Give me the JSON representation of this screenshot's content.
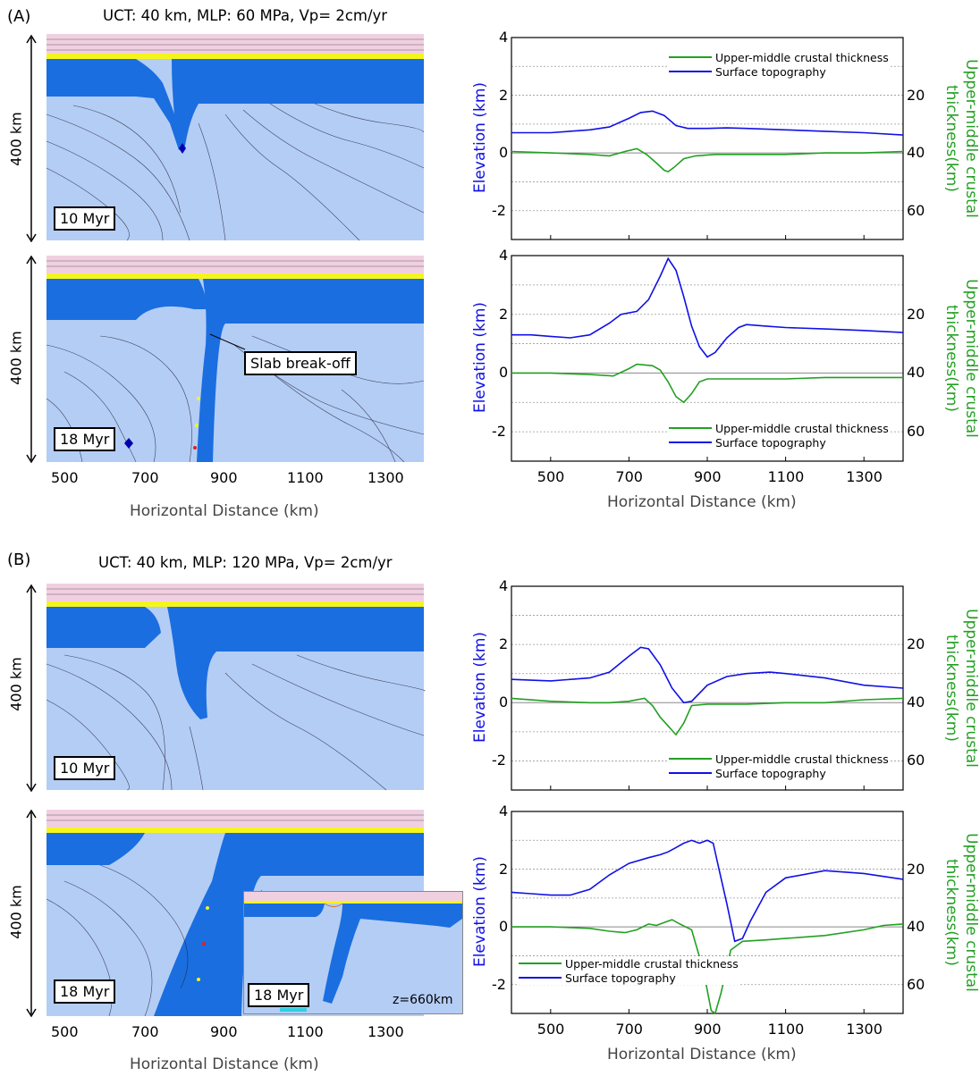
{
  "panels": {
    "A": {
      "label": "(A)",
      "params": "UCT: 40 km, MLP: 60 MPa, Vp= 2cm/yr",
      "depth_label": "400 km",
      "snapshots": [
        {
          "time": "10 Myr"
        },
        {
          "time": "18 Myr",
          "annotation": "Slab break-off"
        }
      ]
    },
    "B": {
      "label": "(B)",
      "params": "UCT: 40 km, MLP: 120 MPa, Vp= 2cm/yr",
      "depth_label": "400 km",
      "snapshots": [
        {
          "time": "10 Myr"
        },
        {
          "time": "18 Myr",
          "inset_time": "18 Myr",
          "inset_depth": "z=660km"
        }
      ]
    }
  },
  "model_axis": {
    "ticks": [
      "500",
      "700",
      "900",
      "1100",
      "1300"
    ],
    "xlabel": "Horizontal Distance (km)"
  },
  "colors": {
    "topography": "#1010e6",
    "crust": "#22a022",
    "lithosphere": "#1a6ee0",
    "mantle": "#b4cdf5",
    "air": "#f0d0e0",
    "sediment": "#f5f51e"
  },
  "chart_data": [
    {
      "type": "line",
      "panel": "A",
      "time": "10 Myr",
      "xlim": [
        400,
        1400
      ],
      "ylim": [
        -3,
        4
      ],
      "yticks": [
        "4",
        "2",
        "0",
        "-2"
      ],
      "y2ticks": [
        "20",
        "40",
        "60"
      ],
      "xlabel": "",
      "ylabel": "Elevation (km)",
      "y2label": "Upper-middle crustal thickness(km)",
      "legend_position": "top-right",
      "series": [
        {
          "name": "Upper-middle crustal thickness",
          "color": "#22a022",
          "x": [
            400,
            500,
            600,
            650,
            690,
            720,
            745,
            770,
            790,
            800,
            815,
            840,
            870,
            920,
            1000,
            1100,
            1200,
            1300,
            1400
          ],
          "y": [
            0.05,
            0.0,
            -0.05,
            -0.1,
            0.05,
            0.15,
            -0.05,
            -0.35,
            -0.6,
            -0.65,
            -0.5,
            -0.2,
            -0.1,
            -0.05,
            -0.05,
            -0.05,
            0.0,
            0.0,
            0.05
          ]
        },
        {
          "name": "Surface topography",
          "color": "#1010e6",
          "x": [
            400,
            500,
            600,
            650,
            700,
            730,
            760,
            790,
            820,
            850,
            900,
            950,
            1000,
            1100,
            1200,
            1300,
            1400
          ],
          "y": [
            0.7,
            0.7,
            0.8,
            0.9,
            1.2,
            1.4,
            1.45,
            1.3,
            0.95,
            0.85,
            0.85,
            0.87,
            0.85,
            0.8,
            0.75,
            0.7,
            0.62
          ]
        }
      ]
    },
    {
      "type": "line",
      "panel": "A",
      "time": "18 Myr",
      "xlim": [
        400,
        1400
      ],
      "ylim": [
        -3,
        4
      ],
      "yticks": [
        "4",
        "2",
        "0",
        "-2"
      ],
      "y2ticks": [
        "20",
        "40",
        "60"
      ],
      "xlabel": "Horizontal Distance (km)",
      "ylabel": "Elevation (km)",
      "y2label": "Upper-middle crustal thickness(km)",
      "xticks": [
        "500",
        "700",
        "900",
        "1100",
        "1300"
      ],
      "legend_position": "bottom-right",
      "series": [
        {
          "name": "Upper-middle crustal thickness",
          "color": "#22a022",
          "x": [
            400,
            500,
            600,
            660,
            700,
            720,
            760,
            780,
            800,
            820,
            840,
            860,
            880,
            900,
            1000,
            1100,
            1200,
            1300,
            1400
          ],
          "y": [
            0.0,
            0.0,
            -0.05,
            -0.1,
            0.15,
            0.3,
            0.25,
            0.1,
            -0.3,
            -0.8,
            -1.0,
            -0.7,
            -0.3,
            -0.2,
            -0.2,
            -0.2,
            -0.15,
            -0.15,
            -0.15
          ]
        },
        {
          "name": "Surface topography",
          "color": "#1010e6",
          "x": [
            400,
            450,
            500,
            550,
            600,
            650,
            680,
            720,
            750,
            780,
            800,
            820,
            840,
            860,
            880,
            900,
            920,
            950,
            980,
            1000,
            1050,
            1100,
            1200,
            1300,
            1400
          ],
          "y": [
            1.3,
            1.3,
            1.25,
            1.2,
            1.3,
            1.7,
            2.0,
            2.1,
            2.5,
            3.3,
            3.9,
            3.5,
            2.6,
            1.6,
            0.9,
            0.55,
            0.7,
            1.2,
            1.55,
            1.65,
            1.6,
            1.55,
            1.5,
            1.45,
            1.38
          ]
        }
      ]
    },
    {
      "type": "line",
      "panel": "B",
      "time": "10 Myr",
      "xlim": [
        400,
        1400
      ],
      "ylim": [
        -3,
        4
      ],
      "yticks": [
        "4",
        "2",
        "0",
        "-2"
      ],
      "y2ticks": [
        "20",
        "40",
        "60"
      ],
      "xlabel": "",
      "ylabel": "Elevation (km)",
      "y2label": "Upper-middle crustal thickness(km)",
      "legend_position": "bottom-right",
      "series": [
        {
          "name": "Upper-middle crustal thickness",
          "color": "#22a022",
          "x": [
            400,
            500,
            600,
            650,
            700,
            740,
            760,
            780,
            800,
            820,
            840,
            860,
            900,
            1000,
            1100,
            1200,
            1300,
            1400
          ],
          "y": [
            0.15,
            0.05,
            0.0,
            0.0,
            0.05,
            0.15,
            -0.1,
            -0.5,
            -0.8,
            -1.1,
            -0.7,
            -0.1,
            -0.05,
            -0.05,
            0.0,
            0.0,
            0.1,
            0.15
          ]
        },
        {
          "name": "Surface topography",
          "color": "#1010e6",
          "x": [
            400,
            500,
            600,
            650,
            700,
            730,
            750,
            780,
            810,
            840,
            860,
            900,
            950,
            1000,
            1060,
            1100,
            1200,
            1300,
            1400
          ],
          "y": [
            0.8,
            0.75,
            0.85,
            1.05,
            1.6,
            1.9,
            1.85,
            1.3,
            0.5,
            0.0,
            0.05,
            0.6,
            0.9,
            1.0,
            1.05,
            1.0,
            0.85,
            0.6,
            0.5
          ]
        }
      ]
    },
    {
      "type": "line",
      "panel": "B",
      "time": "18 Myr",
      "xlim": [
        400,
        1400
      ],
      "ylim": [
        -3,
        4
      ],
      "yticks": [
        "4",
        "2",
        "0",
        "-2"
      ],
      "y2ticks": [
        "20",
        "40",
        "60"
      ],
      "xlabel": "Horizontal Distance (km)",
      "ylabel": "Elevation (km)",
      "y2label": "Upper-middle crustal thickness(km)",
      "xticks": [
        "500",
        "700",
        "900",
        "1100",
        "1300"
      ],
      "legend_position": "bottom-left",
      "series": [
        {
          "name": "Upper-middle crustal thickness",
          "color": "#22a022",
          "x": [
            400,
            500,
            600,
            650,
            690,
            720,
            750,
            770,
            790,
            810,
            830,
            860,
            890,
            910,
            920,
            935,
            960,
            990,
            1050,
            1100,
            1200,
            1300,
            1350,
            1400
          ],
          "y": [
            0.0,
            0.0,
            -0.05,
            -0.15,
            -0.2,
            -0.1,
            0.1,
            0.05,
            0.15,
            0.25,
            0.1,
            -0.1,
            -1.5,
            -2.9,
            -3.0,
            -2.3,
            -0.8,
            -0.5,
            -0.45,
            -0.4,
            -0.3,
            -0.1,
            0.05,
            0.1
          ]
        },
        {
          "name": "Surface topography",
          "color": "#1010e6",
          "x": [
            400,
            450,
            500,
            550,
            600,
            650,
            700,
            750,
            780,
            800,
            820,
            840,
            860,
            880,
            900,
            915,
            930,
            950,
            970,
            990,
            1010,
            1050,
            1100,
            1200,
            1300,
            1400
          ],
          "y": [
            1.2,
            1.15,
            1.1,
            1.1,
            1.3,
            1.8,
            2.2,
            2.4,
            2.5,
            2.6,
            2.75,
            2.9,
            3.0,
            2.9,
            3.0,
            2.9,
            2.0,
            0.8,
            -0.5,
            -0.4,
            0.2,
            1.2,
            1.7,
            1.95,
            1.85,
            1.65
          ]
        }
      ]
    }
  ]
}
